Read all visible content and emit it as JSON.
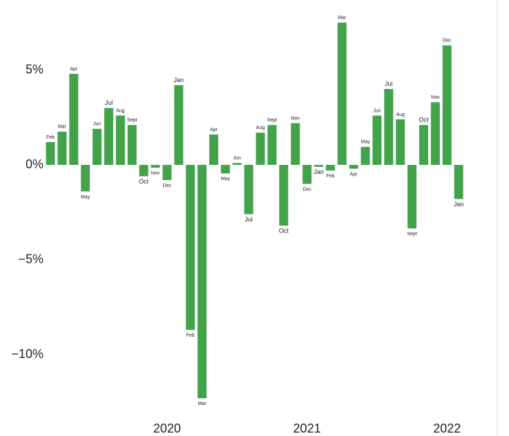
{
  "chart_data": {
    "type": "bar",
    "categories": [
      "Feb",
      "Mar",
      "Apr",
      "May",
      "Jun",
      "Jul",
      "Aug",
      "Sept",
      "Oct",
      "Nov",
      "Dec",
      "Jan",
      "Feb",
      "Mar",
      "Apr",
      "May",
      "Jun",
      "Jul",
      "Aug",
      "Sept",
      "Oct",
      "Nov",
      "Dec",
      "Jan",
      "Feb",
      "Mar",
      "Apr",
      "May",
      "Jun",
      "Jul",
      "Aug",
      "Sept",
      "Oct",
      "Nov",
      "Dec",
      "Jan"
    ],
    "values": [
      1.2,
      1.75,
      4.8,
      -1.4,
      1.9,
      3.0,
      2.6,
      2.1,
      -0.6,
      -0.15,
      -0.8,
      4.2,
      -8.7,
      -12.3,
      1.6,
      -0.45,
      0.1,
      -2.6,
      1.7,
      2.1,
      -3.2,
      2.2,
      -1.0,
      -0.1,
      -0.3,
      7.5,
      -0.2,
      0.95,
      2.6,
      4.0,
      2.4,
      -3.35,
      2.1,
      3.3,
      6.3,
      -1.8
    ],
    "color": "#43a34b",
    "years": [
      "2020",
      "2021",
      "2022"
    ],
    "ylim": [
      -13.2,
      8.4
    ],
    "yticks": [
      {
        "value": -10,
        "label": "−10%"
      },
      {
        "value": -5,
        "label": "−5%"
      },
      {
        "value": 0,
        "label": "0%"
      },
      {
        "value": 5,
        "label": "5%"
      }
    ]
  }
}
